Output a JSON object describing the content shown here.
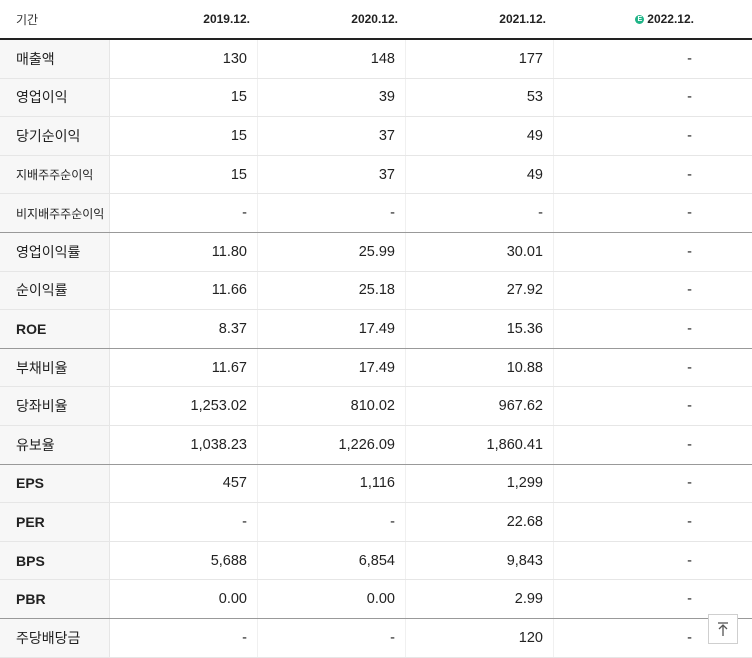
{
  "header": {
    "label": "기간",
    "periods": [
      "2019.12.",
      "2020.12.",
      "2021.12.",
      "2022.12."
    ],
    "estimate_badge": "E"
  },
  "rows": [
    {
      "label": "매출액",
      "values": [
        "130",
        "148",
        "177",
        "-"
      ]
    },
    {
      "label": "영업이익",
      "values": [
        "15",
        "39",
        "53",
        "-"
      ]
    },
    {
      "label": "당기순이익",
      "values": [
        "15",
        "37",
        "49",
        "-"
      ]
    },
    {
      "label": "지배주주순이익",
      "values": [
        "15",
        "37",
        "49",
        "-"
      ]
    },
    {
      "label": "비지배주주순이익",
      "values": [
        "-",
        "-",
        "-",
        "-"
      ]
    },
    {
      "label": "영업이익률",
      "values": [
        "11.80",
        "25.99",
        "30.01",
        "-"
      ]
    },
    {
      "label": "순이익률",
      "values": [
        "11.66",
        "25.18",
        "27.92",
        "-"
      ]
    },
    {
      "label": "ROE",
      "values": [
        "8.37",
        "17.49",
        "15.36",
        "-"
      ]
    },
    {
      "label": "부채비율",
      "values": [
        "11.67",
        "17.49",
        "10.88",
        "-"
      ]
    },
    {
      "label": "당좌비율",
      "values": [
        "1,253.02",
        "810.02",
        "967.62",
        "-"
      ]
    },
    {
      "label": "유보율",
      "values": [
        "1,038.23",
        "1,226.09",
        "1,860.41",
        "-"
      ]
    },
    {
      "label": "EPS",
      "values": [
        "457",
        "1,116",
        "1,299",
        "-"
      ]
    },
    {
      "label": "PER",
      "values": [
        "-",
        "-",
        "22.68",
        "-"
      ]
    },
    {
      "label": "BPS",
      "values": [
        "5,688",
        "6,854",
        "9,843",
        "-"
      ]
    },
    {
      "label": "PBR",
      "values": [
        "0.00",
        "0.00",
        "2.99",
        "-"
      ]
    },
    {
      "label": "주당배당금",
      "values": [
        "-",
        "-",
        "120",
        "-"
      ]
    }
  ],
  "scroll_top_icon": "arrow-up-to-top-icon"
}
